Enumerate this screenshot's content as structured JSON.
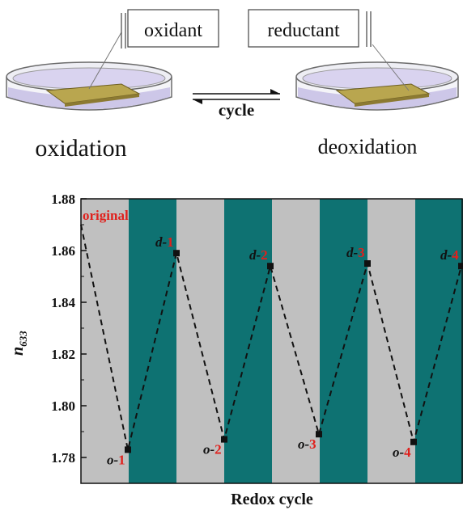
{
  "schematic": {
    "left_box": "oxidant",
    "right_box": "reductant",
    "cycle_label": "cycle",
    "left_caption": "oxidation",
    "right_caption": "deoxidation",
    "colors": {
      "dish_liquid": "#c9c2e6",
      "sample": "#b9a64f",
      "dish_rim": "#6b6b6b"
    }
  },
  "chart_data": {
    "type": "line",
    "xlabel": "Redox cycle",
    "ylabel_main": "n",
    "ylabel_sub": "633",
    "ylim": [
      1.77,
      1.88
    ],
    "yticks": [
      1.78,
      1.8,
      1.82,
      1.84,
      1.86,
      1.88
    ],
    "ytick_labels": [
      "1.78",
      "1.80",
      "1.82",
      "1.84",
      "1.86",
      "1.88"
    ],
    "band_colors": [
      "#c0c0c0",
      "#0e7272"
    ],
    "band_count": 8,
    "points": [
      {
        "x": 0,
        "y": 1.87,
        "prefix": "",
        "suffix": "original"
      },
      {
        "x": 1,
        "y": 1.783,
        "prefix": "o-",
        "suffix": "1"
      },
      {
        "x": 2,
        "y": 1.859,
        "prefix": "d-",
        "suffix": "1"
      },
      {
        "x": 3,
        "y": 1.787,
        "prefix": "o-",
        "suffix": "2"
      },
      {
        "x": 4,
        "y": 1.854,
        "prefix": "d-",
        "suffix": "2"
      },
      {
        "x": 5,
        "y": 1.789,
        "prefix": "o-",
        "suffix": "3"
      },
      {
        "x": 6,
        "y": 1.855,
        "prefix": "d-",
        "suffix": "3"
      },
      {
        "x": 7,
        "y": 1.786,
        "prefix": "o-",
        "suffix": "4"
      },
      {
        "x": 8,
        "y": 1.854,
        "prefix": "d-",
        "suffix": "4"
      }
    ],
    "colors": {
      "line": "#111111",
      "label_num": "#e0201c",
      "label_prefix": "#111111"
    }
  }
}
